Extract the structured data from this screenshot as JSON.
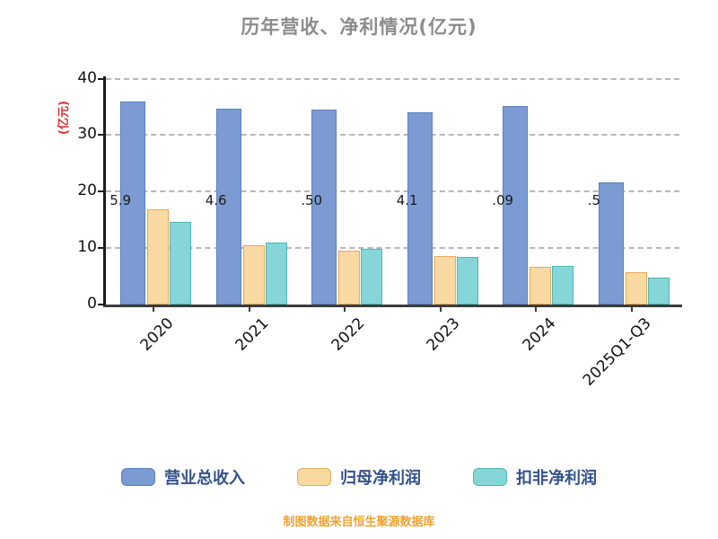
{
  "title": "历年营收、净利情况(亿元)",
  "y_axis_label": "(亿元)",
  "footer": "制图数据来自恒生聚源数据库",
  "colors": {
    "title": "#8c8c8c",
    "y_axis_label": "#e03030",
    "footer": "#f0a232",
    "axis": "#1c1c1c",
    "grid": "#b8b8b8",
    "legend_text": "#33518c"
  },
  "chart_data": {
    "type": "bar",
    "title": "历年营收、净利情况(亿元)",
    "ylabel": "(亿元)",
    "categories": [
      "2020",
      "2021",
      "2022",
      "2023",
      "2024",
      "2025Q1-Q3"
    ],
    "series": [
      {
        "name": "营业总收入",
        "color": "#7b9bd2",
        "border": "#5b80c0",
        "values": [
          35.9,
          34.7,
          34.5,
          34.1,
          35.1,
          21.6
        ]
      },
      {
        "name": "归母净利润",
        "color": "#f8d9a2",
        "border": "#e8aa5a",
        "values": [
          16.8,
          10.5,
          9.6,
          8.6,
          6.7,
          5.7
        ]
      },
      {
        "name": "扣非净利润",
        "color": "#86d6d8",
        "border": "#4db6ba",
        "values": [
          14.6,
          11.0,
          9.9,
          8.5,
          6.9,
          4.8
        ]
      }
    ],
    "bar_label_fragments": [
      "5.9",
      "4.6",
      ".50",
      "4.1",
      ".09",
      ".5"
    ],
    "y_ticks": [
      0,
      10,
      20,
      30,
      40
    ],
    "ylim": [
      0,
      40
    ],
    "grid": "dashed-horizontal",
    "legend_position": "bottom"
  }
}
